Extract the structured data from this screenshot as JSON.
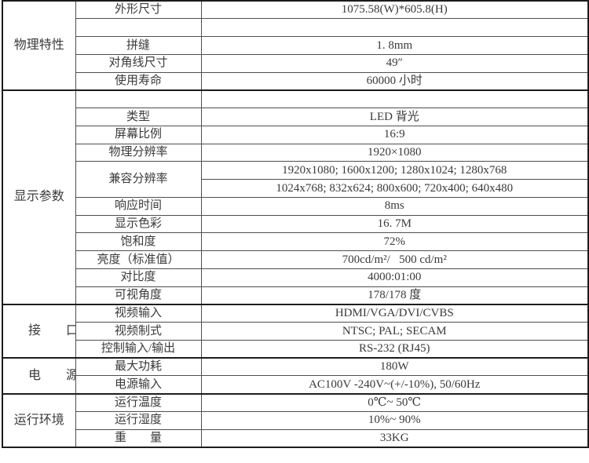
{
  "colors": {
    "background": "#ffffff",
    "border_heavy": "#1c1c1c",
    "border_light": "#4f4f4f",
    "text": "#3a3a3a"
  },
  "table": {
    "sections": [
      {
        "category": "物理特性",
        "rows": [
          {
            "param": "外形尺寸",
            "value": "1075.58(W)*605.8(H)"
          },
          {
            "param": "",
            "value": ""
          },
          {
            "param": "拼缝",
            "value": "1. 8mm"
          },
          {
            "param": "对角线尺寸",
            "value": "49″"
          },
          {
            "param": "使用寿命",
            "value": "60000 小时"
          }
        ]
      },
      {
        "category": "显示参数",
        "rows": [
          {
            "param": "",
            "value": ""
          },
          {
            "param": "类型",
            "value": "LED 背光"
          },
          {
            "param": "屏幕比例",
            "value": "16:9"
          },
          {
            "param": "物理分辨率",
            "value": "1920×1080"
          },
          {
            "param": "兼容分辨率",
            "value": "1920x1080; 1600x1200; 1280x1024; 1280x768",
            "value2": "1024x768; 832x624; 800x600; 720x400; 640x480"
          },
          {
            "param": "响应时间",
            "value": "8ms"
          },
          {
            "param": "显示色彩",
            "value": "16. 7M"
          },
          {
            "param": "饱和度",
            "value": "72%"
          },
          {
            "param": "亮度（标准值）",
            "value": "700cd/m²/   500 cd/m²"
          },
          {
            "param": "对比度",
            "value": "4000:01:00"
          },
          {
            "param": "可视角度",
            "value": "178/178 度"
          }
        ]
      },
      {
        "category": "接口",
        "rows": [
          {
            "param": "视频输入",
            "value": "HDMI/VGA/DVI/CVBS"
          },
          {
            "param": "视频制式",
            "value": "NTSC; PAL; SECAM"
          },
          {
            "param": "控制输入/输出",
            "value": "RS-232 (RJ45)"
          }
        ]
      },
      {
        "category": "电源",
        "rows": [
          {
            "param": "最大功耗",
            "value": "180W"
          },
          {
            "param": "电源输入",
            "value": "AC100V -240V~(+/-10%), 50/60Hz"
          }
        ]
      },
      {
        "category": "运行环境",
        "rows": [
          {
            "param": "运行温度",
            "value": "0℃~ 50℃"
          },
          {
            "param": "运行湿度",
            "value": "10%~ 90%"
          },
          {
            "param": "重量",
            "value": "33KG"
          }
        ]
      }
    ]
  }
}
